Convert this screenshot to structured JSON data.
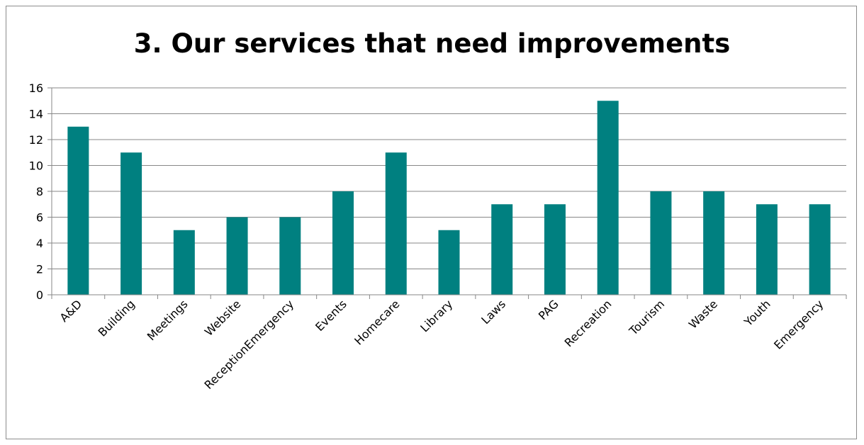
{
  "chart_data": {
    "type": "bar",
    "title": "3. Our services that need improvements",
    "categories": [
      "A&D",
      "Building",
      "Meetings",
      "Website",
      "ReceptionEmergency",
      "Events",
      "Homecare",
      "Library",
      "Laws",
      "PAG",
      "Recreation",
      "Tourism",
      "Waste",
      "Youth",
      "Emergency"
    ],
    "values": [
      13,
      11,
      5,
      6,
      6,
      8,
      11,
      5,
      7,
      7,
      15,
      8,
      8,
      7,
      7
    ],
    "ylim": [
      0,
      16
    ],
    "yticks": [
      0,
      2,
      4,
      6,
      8,
      10,
      12,
      14,
      16
    ],
    "grid": true,
    "legend": "none",
    "xlabel": "",
    "ylabel": "",
    "bar_color": "#008080"
  }
}
